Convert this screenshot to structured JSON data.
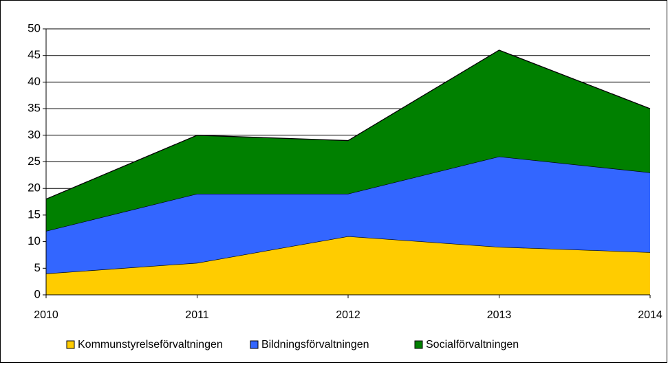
{
  "chart_data": {
    "type": "stacked-area",
    "categories": [
      "2010",
      "2011",
      "2012",
      "2013",
      "2014"
    ],
    "series": [
      {
        "name": "Kommunstyrelseförvaltningen",
        "color": "#ffcc00",
        "values": [
          4,
          6,
          11,
          9,
          8
        ]
      },
      {
        "name": "Bildningsförvaltningen",
        "color": "#3366ff",
        "values": [
          8,
          13,
          8,
          17,
          15
        ]
      },
      {
        "name": "Socialförvaltningen",
        "color": "#008000",
        "values": [
          6,
          11,
          10,
          20,
          12
        ]
      }
    ],
    "ylim": [
      0,
      50
    ],
    "yticks": [
      0,
      5,
      10,
      15,
      20,
      25,
      30,
      35,
      40,
      45,
      50
    ],
    "grid": true,
    "legend": "bottom"
  }
}
